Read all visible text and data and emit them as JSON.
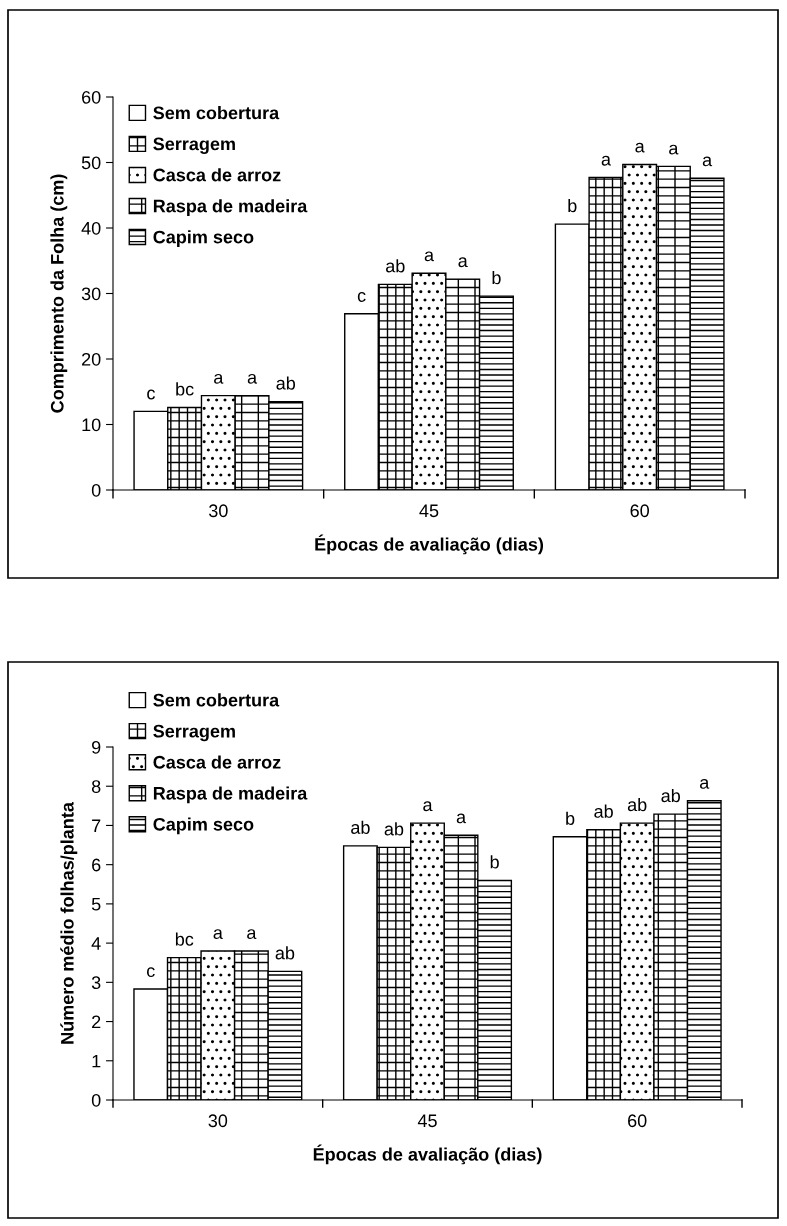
{
  "chart_data": [
    {
      "type": "bar",
      "xlabel": "Épocas de avaliação (dias)",
      "ylabel": "Comprimento da Folha (cm)",
      "categories": [
        "30",
        "45",
        "60"
      ],
      "ylim": [
        0,
        60
      ],
      "yticks": [
        0,
        10,
        20,
        30,
        40,
        50,
        60
      ],
      "legend": "top left",
      "grid": false,
      "series": [
        {
          "name": "Sem cobertura",
          "color": "#ffffff",
          "values": [
            12.0,
            26.9,
            40.6
          ],
          "value_labels": [
            "c",
            "c",
            "b"
          ]
        },
        {
          "name": "Serragem",
          "color": "#000000",
          "values": [
            12.6,
            31.4,
            47.7
          ],
          "value_labels": [
            "bc",
            "ab",
            "a"
          ]
        },
        {
          "name": "Casca de arroz",
          "color": "#000000",
          "values": [
            14.4,
            33.1,
            49.7
          ],
          "value_labels": [
            "a",
            "a",
            "a"
          ]
        },
        {
          "name": "Raspa de madeira",
          "color": "#000000",
          "values": [
            14.4,
            32.2,
            49.4
          ],
          "value_labels": [
            "a",
            "a",
            "a"
          ]
        },
        {
          "name": "Capim seco",
          "color": "#000000",
          "values": [
            13.5,
            29.6,
            47.6
          ],
          "value_labels": [
            "ab",
            "b",
            "a"
          ]
        }
      ]
    },
    {
      "type": "bar",
      "xlabel": "Épocas de avaliação (dias)",
      "ylabel": "Número médio folhas/planta",
      "categories": [
        "30",
        "45",
        "60"
      ],
      "ylim": [
        0,
        9
      ],
      "yticks": [
        0,
        1,
        2,
        3,
        4,
        5,
        6,
        7,
        8,
        9
      ],
      "legend": "top left",
      "grid": false,
      "series": [
        {
          "name": "Sem cobertura",
          "color": "#ffffff",
          "values": [
            2.83,
            6.48,
            6.71
          ],
          "value_labels": [
            "c",
            "ab",
            "b"
          ]
        },
        {
          "name": "Serragem",
          "color": "#000000",
          "values": [
            3.63,
            6.44,
            6.89
          ],
          "value_labels": [
            "bc",
            "ab",
            "ab"
          ]
        },
        {
          "name": "Casca de arroz",
          "color": "#000000",
          "values": [
            3.8,
            7.06,
            7.06
          ],
          "value_labels": [
            "a",
            "a",
            "ab"
          ]
        },
        {
          "name": "Raspa de madeira",
          "color": "#000000",
          "values": [
            3.8,
            6.75,
            7.29
          ],
          "value_labels": [
            "a",
            "a",
            "ab"
          ]
        },
        {
          "name": "Capim seco",
          "color": "#000000",
          "values": [
            3.28,
            5.6,
            7.63
          ],
          "value_labels": [
            "ab",
            "b",
            "a"
          ]
        }
      ]
    }
  ]
}
